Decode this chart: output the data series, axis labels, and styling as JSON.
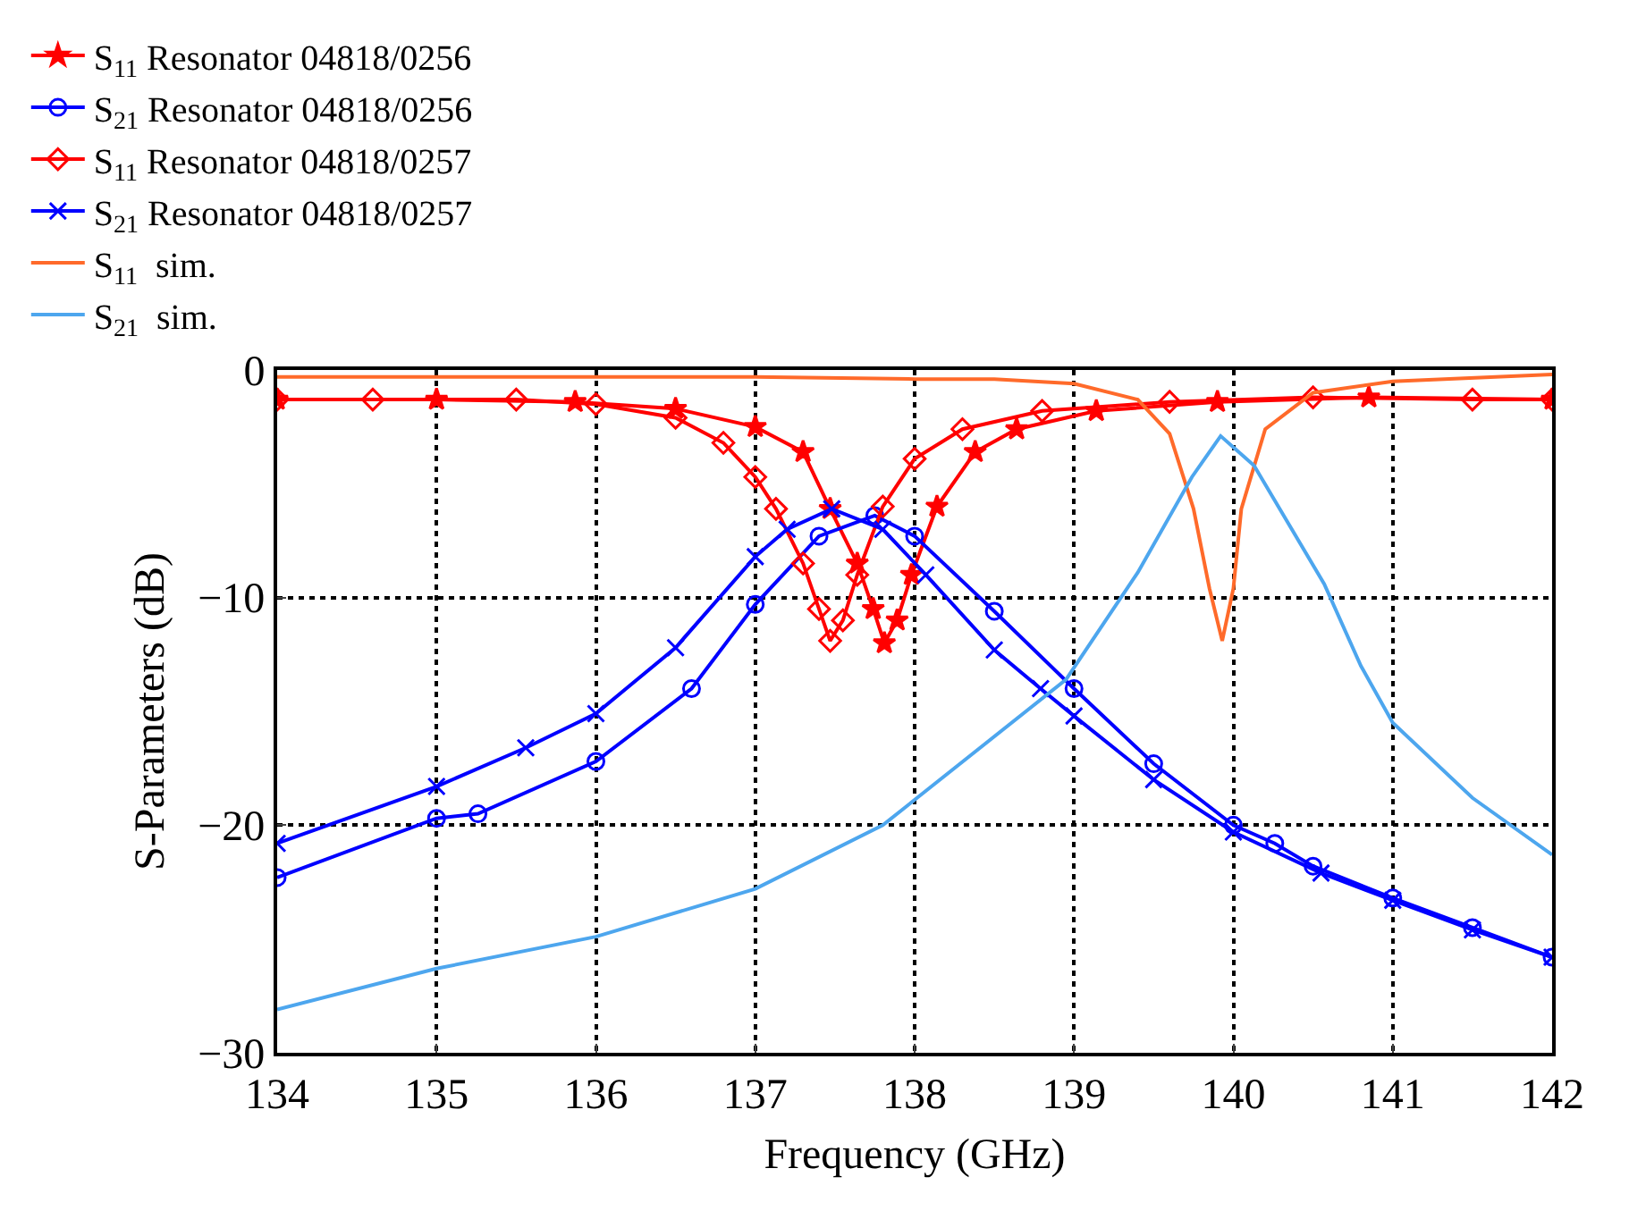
{
  "chart_data": {
    "type": "line",
    "xlabel": "Frequency (GHz)",
    "ylabel": "S-Parameters (dB)",
    "xlim": [
      134,
      142
    ],
    "xticks": [
      134,
      135,
      136,
      137,
      138,
      139,
      140,
      141,
      142
    ],
    "ylim": [
      -30,
      0
    ],
    "yticks": [
      -30,
      -20,
      -10,
      0
    ],
    "grid": true,
    "legend": "top",
    "line_style": "solid",
    "series": [
      {
        "name": "S$_{11}$ Resonator 04818/0256",
        "color": "#ff0000",
        "marker": "star",
        "x": [
          134,
          135,
          135.87,
          136.5,
          137.0,
          137.3,
          137.47,
          137.64,
          137.74,
          137.81,
          137.89,
          137.98,
          138.14,
          138.38,
          138.64,
          139.14,
          139.9,
          140.85,
          142
        ],
        "values": [
          -1.3,
          -1.3,
          -1.4,
          -1.7,
          -2.5,
          -3.6,
          -6.1,
          -8.5,
          -10.5,
          -12.0,
          -11.0,
          -9.0,
          -6.0,
          -3.6,
          -2.6,
          -1.8,
          -1.4,
          -1.2,
          -1.3
        ]
      },
      {
        "name": "S$_{21}$ Resonator 04818/0256",
        "color": "#0000ff",
        "marker": "circle",
        "x": [
          134,
          135,
          135.26,
          136,
          136.6,
          137.0,
          137.4,
          137.75,
          138.0,
          138.5,
          139.0,
          139.5,
          140.0,
          140.26,
          140.5,
          141,
          141.5,
          142
        ],
        "values": [
          -22.3,
          -19.7,
          -19.5,
          -17.2,
          -14.0,
          -10.3,
          -7.3,
          -6.4,
          -7.3,
          -10.6,
          -14.0,
          -17.3,
          -20.0,
          -20.8,
          -21.8,
          -23.2,
          -24.5,
          -25.8
        ]
      },
      {
        "name": "S$_{11}$ Resonator 04818/0257",
        "color": "#ff0000",
        "marker": "diamond",
        "x": [
          134,
          134.6,
          135.5,
          136,
          136.5,
          136.8,
          137.0,
          137.13,
          137.3,
          137.4,
          137.47,
          137.55,
          137.64,
          137.8,
          138.0,
          138.3,
          138.8,
          139.6,
          140.5,
          141.5,
          142
        ],
        "values": [
          -1.3,
          -1.3,
          -1.3,
          -1.5,
          -2.1,
          -3.2,
          -4.7,
          -6.1,
          -8.5,
          -10.5,
          -11.9,
          -11.0,
          -9.0,
          -6.0,
          -3.9,
          -2.6,
          -1.8,
          -1.4,
          -1.2,
          -1.3,
          -1.3
        ]
      },
      {
        "name": "S$_{21}$ Resonator 04818/0257",
        "color": "#0000ff",
        "marker": "cross",
        "x": [
          134,
          135,
          135.56,
          136,
          136.5,
          137.0,
          137.2,
          137.48,
          137.8,
          138.07,
          138.5,
          138.79,
          139.0,
          139.5,
          140.0,
          140.55,
          141,
          141.5,
          142
        ],
        "values": [
          -20.8,
          -18.3,
          -16.6,
          -15.1,
          -12.2,
          -8.2,
          -7.0,
          -6.1,
          -7.0,
          -9.0,
          -12.3,
          -14.0,
          -15.2,
          -18.0,
          -20.3,
          -22.1,
          -23.3,
          -24.6,
          -25.8
        ]
      },
      {
        "name": "S$_{11}$  sim.",
        "color": "#ff6a2a",
        "marker": "none",
        "x": [
          134,
          137,
          138,
          138.5,
          139,
          139.4,
          139.6,
          139.75,
          139.85,
          139.93,
          140.0,
          140.05,
          140.2,
          140.5,
          141,
          142
        ],
        "values": [
          -0.3,
          -0.3,
          -0.4,
          -0.4,
          -0.6,
          -1.3,
          -2.8,
          -6.1,
          -9.6,
          -11.9,
          -9.6,
          -6.1,
          -2.6,
          -1.0,
          -0.5,
          -0.2
        ]
      },
      {
        "name": "S$_{21}$  sim.",
        "color": "#4da6ee",
        "marker": "none",
        "x": [
          134,
          135,
          136,
          137,
          137.8,
          138.95,
          139.4,
          139.74,
          139.92,
          140.13,
          140.57,
          140.8,
          141.0,
          141.5,
          142
        ],
        "values": [
          -28.1,
          -26.3,
          -24.9,
          -22.8,
          -20.0,
          -13.6,
          -8.9,
          -4.7,
          -2.9,
          -4.2,
          -9.4,
          -13.0,
          -15.5,
          -18.8,
          -21.3
        ]
      }
    ]
  }
}
